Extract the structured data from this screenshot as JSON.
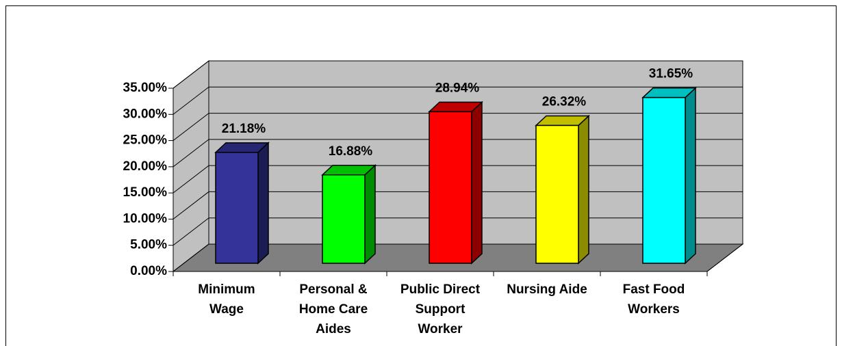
{
  "chart_data": {
    "type": "bar3d",
    "categories": [
      "Minimum\nWage",
      "Personal &\nHome Care\nAides",
      "Public Direct\nSupport\nWorker",
      "Nursing Aide",
      "Fast Food\nWorkers"
    ],
    "values": [
      21.18,
      16.88,
      28.94,
      26.32,
      31.65
    ],
    "value_labels": [
      "21.18%",
      "16.88%",
      "28.94%",
      "26.32%",
      "31.65%"
    ],
    "colors": [
      "#333399",
      "#00ff00",
      "#ff0000",
      "#ffff00",
      "#00ffff"
    ],
    "ylim": [
      0,
      35
    ],
    "yticks": [
      {
        "value": 0,
        "label": "0.00%"
      },
      {
        "value": 5,
        "label": "5.00%"
      },
      {
        "value": 10,
        "label": "10.00%"
      },
      {
        "value": 15,
        "label": "15.00%"
      },
      {
        "value": 20,
        "label": "20.00%"
      },
      {
        "value": 25,
        "label": "25.00%"
      },
      {
        "value": 30,
        "label": "30.00%"
      },
      {
        "value": 35,
        "label": "35.00%"
      }
    ],
    "grid": true
  }
}
